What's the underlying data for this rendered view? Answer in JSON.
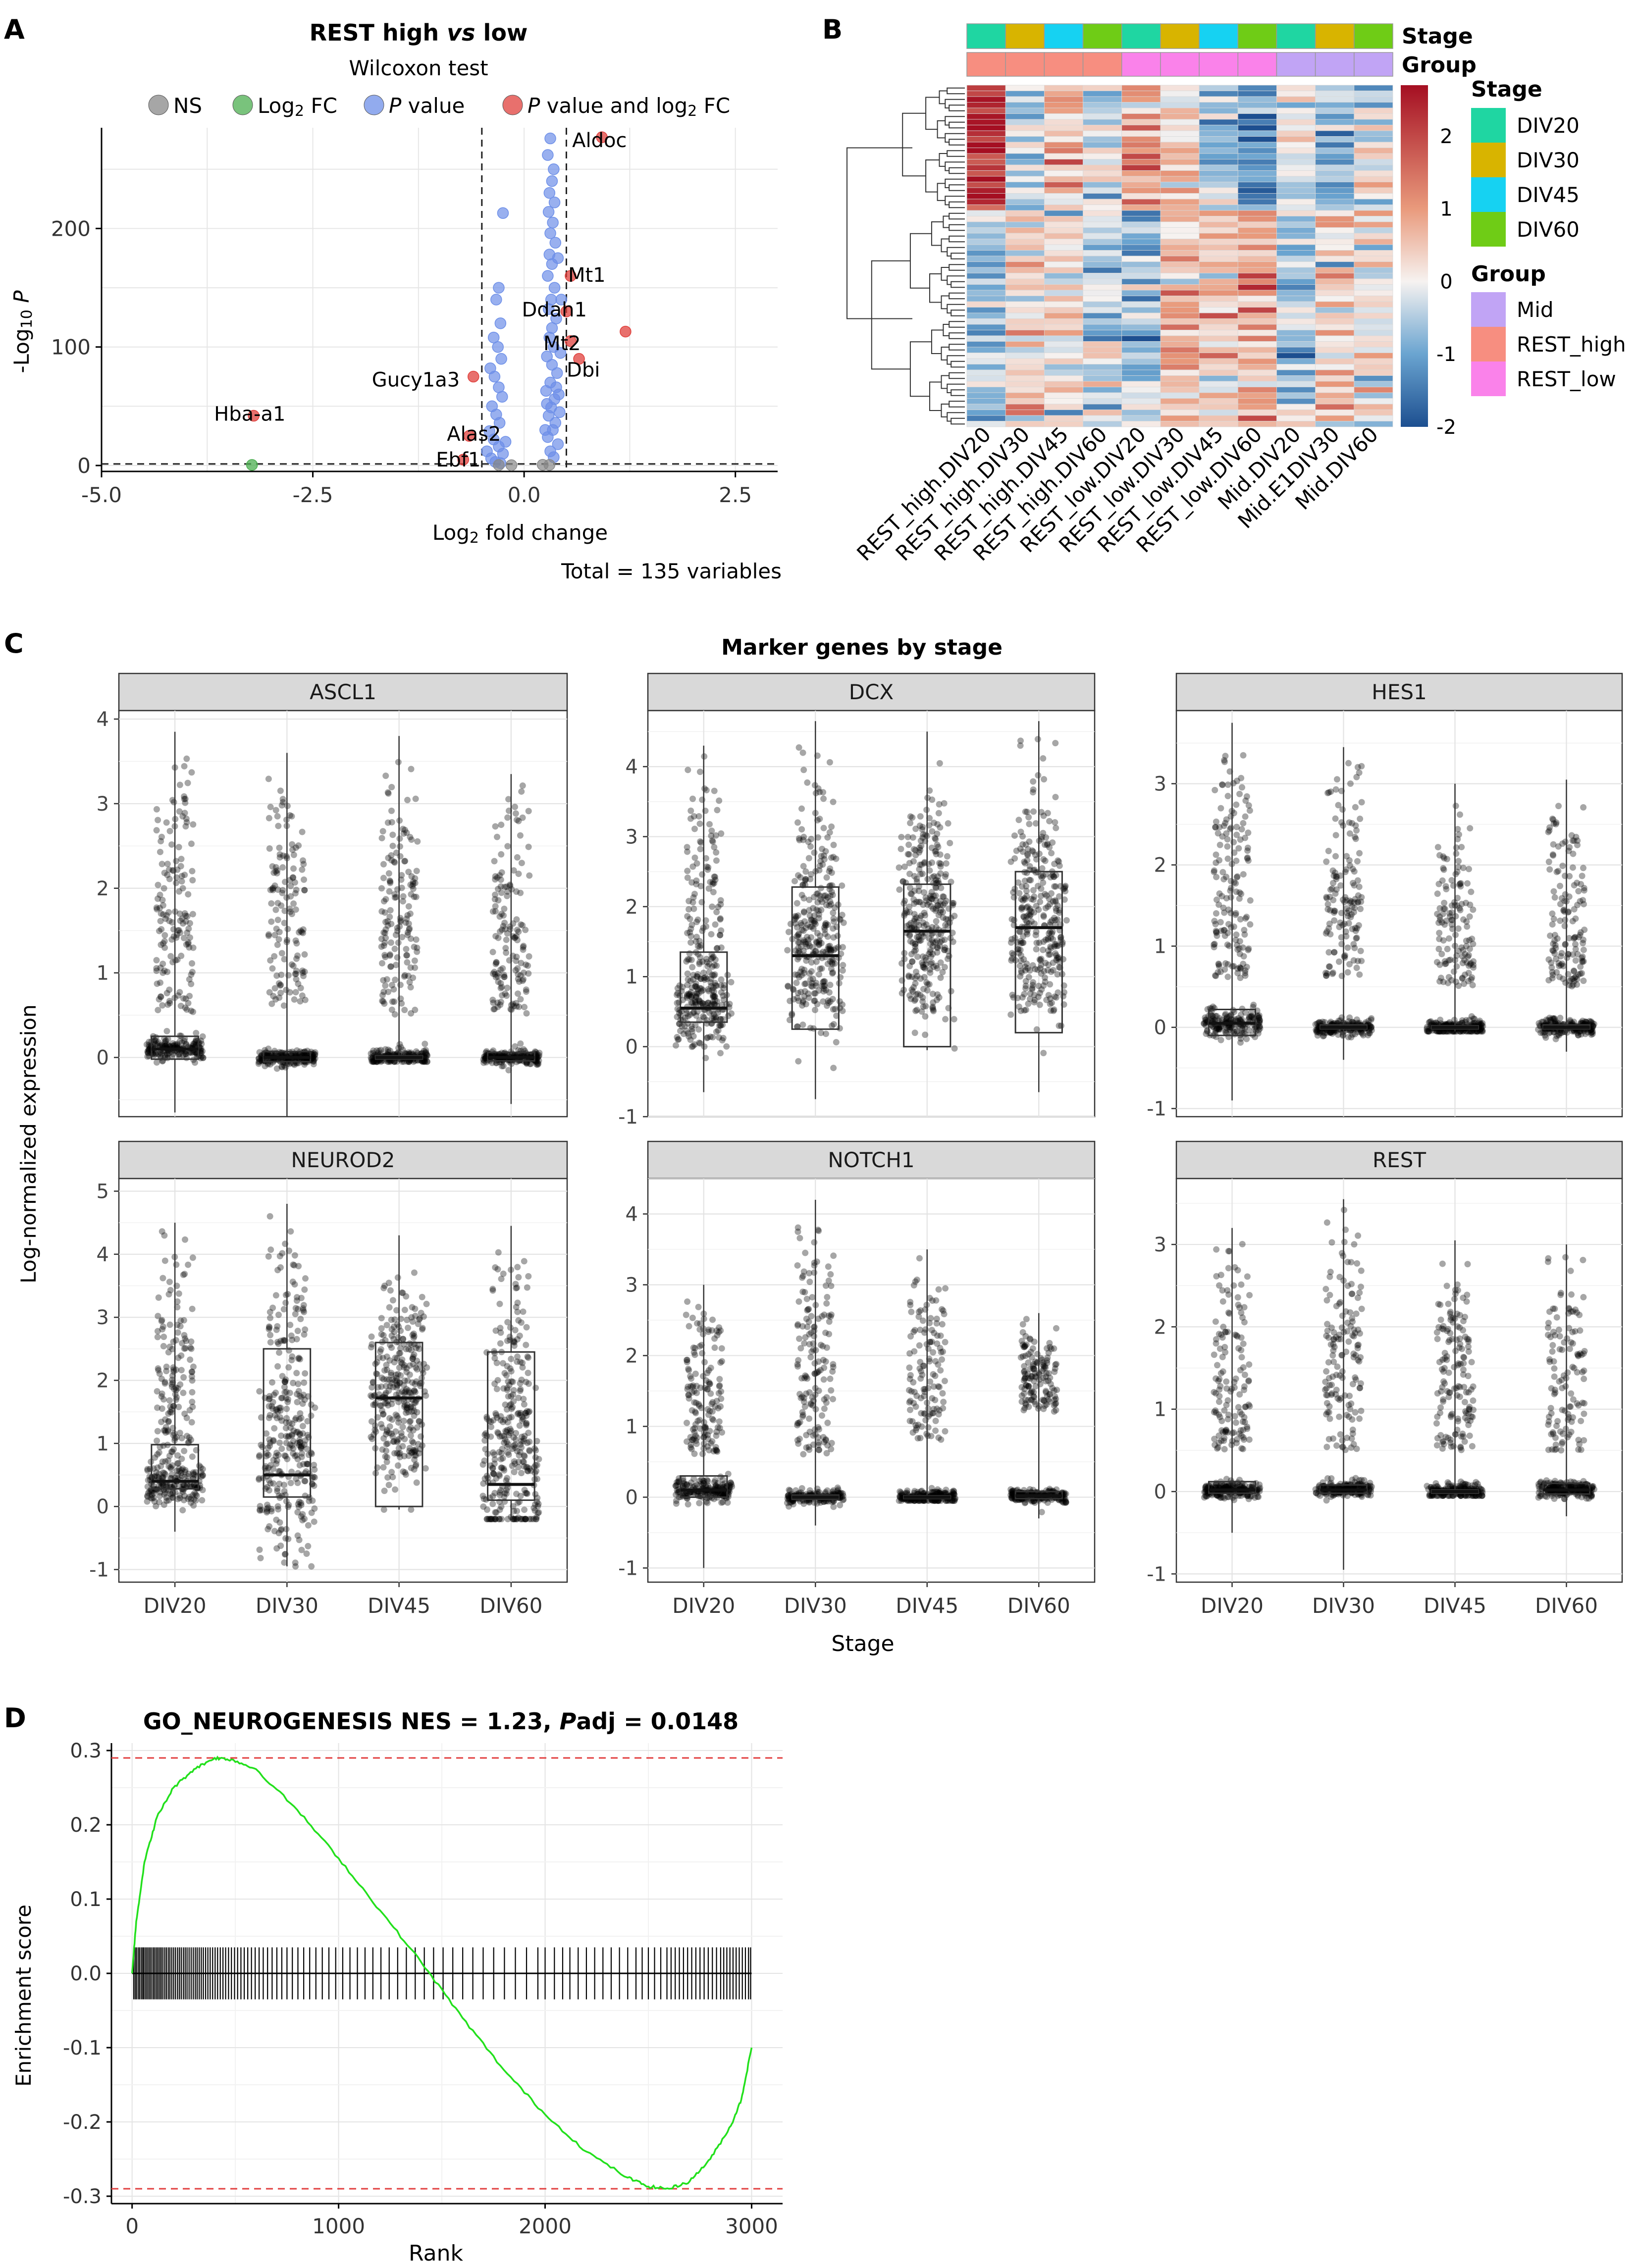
{
  "chart_data": [
    {
      "panel": "A",
      "type": "scatter",
      "title": "REST high vs low",
      "subtitle": "Wilcoxon test",
      "legend": [
        "NS",
        "Log2 FC",
        "P value",
        "P value and log2 FC"
      ],
      "colors": {
        "ns": "#888888",
        "fc": "#4caf50",
        "p": "#6d8fe8",
        "pfc": "#e0403c"
      },
      "xlabel": "Log2 fold change",
      "ylabel": "-Log10 P",
      "xticks": [
        "-5.0",
        "-2.5",
        "0.0",
        "2.5"
      ],
      "yticks": [
        "0",
        "100",
        "200"
      ],
      "xlim": [
        -5.0,
        3.0
      ],
      "ylim": [
        -5,
        285
      ],
      "x_cutoffs": [
        -0.5,
        0.5
      ],
      "y_cutoff": 1.3,
      "caption": "Total = 135 variables",
      "labeled_points": [
        {
          "label": "Aldoc",
          "x": 0.92,
          "y": 277,
          "group": "pfc"
        },
        {
          "label": "Mt1",
          "x": 0.55,
          "y": 160,
          "group": "pfc"
        },
        {
          "label": "Ddah1",
          "x": 0.5,
          "y": 130,
          "group": "pfc"
        },
        {
          "label": "Mt2",
          "x": 0.55,
          "y": 105,
          "group": "pfc"
        },
        {
          "label": "Dbi",
          "x": 0.65,
          "y": 90,
          "group": "pfc"
        },
        {
          "label": "",
          "x": 1.2,
          "y": 113,
          "group": "pfc"
        },
        {
          "label": "Gucy1a3",
          "x": -0.6,
          "y": 75,
          "group": "pfc"
        },
        {
          "label": "Hba-a1",
          "x": -3.2,
          "y": 42,
          "group": "pfc"
        },
        {
          "label": "Alas2",
          "x": -0.65,
          "y": 25,
          "group": "pfc"
        },
        {
          "label": "Ebf1",
          "x": -0.72,
          "y": 5,
          "group": "pfc"
        },
        {
          "label": "",
          "x": -3.22,
          "y": 0.5,
          "group": "fc"
        }
      ],
      "points": [
        {
          "x": 0.31,
          "y": 276,
          "g": "p"
        },
        {
          "x": 0.28,
          "y": 262,
          "g": "p"
        },
        {
          "x": 0.35,
          "y": 250,
          "g": "p"
        },
        {
          "x": 0.33,
          "y": 240,
          "g": "p"
        },
        {
          "x": 0.3,
          "y": 230,
          "g": "p"
        },
        {
          "x": 0.36,
          "y": 222,
          "g": "p"
        },
        {
          "x": 0.29,
          "y": 214,
          "g": "p"
        },
        {
          "x": 0.34,
          "y": 205,
          "g": "p"
        },
        {
          "x": 0.31,
          "y": 196,
          "g": "p"
        },
        {
          "x": 0.37,
          "y": 188,
          "g": "p"
        },
        {
          "x": 0.3,
          "y": 178,
          "g": "p"
        },
        {
          "x": 0.33,
          "y": 170,
          "g": "p"
        },
        {
          "x": 0.28,
          "y": 160,
          "g": "p"
        },
        {
          "x": 0.36,
          "y": 150,
          "g": "p"
        },
        {
          "x": 0.32,
          "y": 140,
          "g": "p"
        },
        {
          "x": 0.29,
          "y": 132,
          "g": "p"
        },
        {
          "x": 0.38,
          "y": 124,
          "g": "p"
        },
        {
          "x": 0.33,
          "y": 116,
          "g": "p"
        },
        {
          "x": 0.3,
          "y": 108,
          "g": "p"
        },
        {
          "x": 0.35,
          "y": 100,
          "g": "p"
        },
        {
          "x": 0.27,
          "y": 92,
          "g": "p"
        },
        {
          "x": 0.33,
          "y": 85,
          "g": "p"
        },
        {
          "x": 0.39,
          "y": 78,
          "g": "p"
        },
        {
          "x": 0.31,
          "y": 70,
          "g": "p"
        },
        {
          "x": 0.26,
          "y": 63,
          "g": "p"
        },
        {
          "x": 0.36,
          "y": 56,
          "g": "p"
        },
        {
          "x": 0.32,
          "y": 49,
          "g": "p"
        },
        {
          "x": 0.29,
          "y": 42,
          "g": "p"
        },
        {
          "x": 0.37,
          "y": 36,
          "g": "p"
        },
        {
          "x": 0.34,
          "y": 30,
          "g": "p"
        },
        {
          "x": 0.28,
          "y": 24,
          "g": "p"
        },
        {
          "x": 0.4,
          "y": 18,
          "g": "p"
        },
        {
          "x": 0.31,
          "y": 12,
          "g": "p"
        },
        {
          "x": 0.35,
          "y": 7,
          "g": "p"
        },
        {
          "x": 0.42,
          "y": 45,
          "g": "p"
        },
        {
          "x": 0.43,
          "y": 95,
          "g": "p"
        },
        {
          "x": 0.44,
          "y": 140,
          "g": "p"
        },
        {
          "x": 0.4,
          "y": 175,
          "g": "p"
        },
        {
          "x": 0.41,
          "y": 60,
          "g": "p"
        },
        {
          "x": 0.25,
          "y": 30,
          "g": "p"
        },
        {
          "x": 0.27,
          "y": 52,
          "g": "p"
        },
        {
          "x": 0.38,
          "y": 66,
          "g": "p"
        },
        {
          "x": -0.25,
          "y": 213,
          "g": "p"
        },
        {
          "x": -0.3,
          "y": 150,
          "g": "p"
        },
        {
          "x": -0.33,
          "y": 140,
          "g": "p"
        },
        {
          "x": -0.28,
          "y": 120,
          "g": "p"
        },
        {
          "x": -0.36,
          "y": 108,
          "g": "p"
        },
        {
          "x": -0.31,
          "y": 100,
          "g": "p"
        },
        {
          "x": -0.27,
          "y": 90,
          "g": "p"
        },
        {
          "x": -0.4,
          "y": 82,
          "g": "p"
        },
        {
          "x": -0.35,
          "y": 75,
          "g": "p"
        },
        {
          "x": -0.3,
          "y": 66,
          "g": "p"
        },
        {
          "x": -0.26,
          "y": 58,
          "g": "p"
        },
        {
          "x": -0.38,
          "y": 50,
          "g": "p"
        },
        {
          "x": -0.33,
          "y": 43,
          "g": "p"
        },
        {
          "x": -0.29,
          "y": 36,
          "g": "p"
        },
        {
          "x": -0.41,
          "y": 29,
          "g": "p"
        },
        {
          "x": -0.36,
          "y": 22,
          "g": "p"
        },
        {
          "x": -0.3,
          "y": 16,
          "g": "p"
        },
        {
          "x": -0.25,
          "y": 10,
          "g": "p"
        },
        {
          "x": -0.39,
          "y": 6,
          "g": "p"
        },
        {
          "x": -0.44,
          "y": 12,
          "g": "p"
        },
        {
          "x": -0.22,
          "y": 20,
          "g": "p"
        },
        {
          "x": -0.34,
          "y": 3,
          "g": "p"
        },
        {
          "x": -0.28,
          "y": 2,
          "g": "p"
        },
        {
          "x": 0.3,
          "y": 0.5,
          "g": "ns"
        },
        {
          "x": -0.3,
          "y": 0.4,
          "g": "ns"
        },
        {
          "x": 0.22,
          "y": 0.6,
          "g": "ns"
        },
        {
          "x": -0.15,
          "y": 0.3,
          "g": "ns"
        }
      ]
    },
    {
      "panel": "B",
      "type": "heatmap",
      "columns": [
        "REST_high.DIV20",
        "REST_high.DIV30",
        "REST_high.DIV45",
        "REST_high.DIV60",
        "REST_low.DIV20",
        "REST_low.DIV30",
        "REST_low.DIV45",
        "REST_low.DIV60",
        "Mid.DIV20",
        "Mid.E1DIV30",
        "Mid.DIV60"
      ],
      "column_stage": [
        "DIV20",
        "DIV30",
        "DIV45",
        "DIV60",
        "DIV20",
        "DIV30",
        "DIV45",
        "DIV60",
        "DIV20",
        "DIV30",
        "DIV60"
      ],
      "column_group": [
        "REST_high",
        "REST_high",
        "REST_high",
        "REST_high",
        "REST_low",
        "REST_low",
        "REST_low",
        "REST_low",
        "Mid",
        "Mid",
        "Mid"
      ],
      "annotation_labels": [
        "Stage",
        "Group"
      ],
      "stage_legend": {
        "title": "Stage",
        "items": [
          {
            "label": "DIV20",
            "color": "#1fd6a2"
          },
          {
            "label": "DIV30",
            "color": "#d8b400"
          },
          {
            "label": "DIV45",
            "color": "#16d2f2"
          },
          {
            "label": "DIV60",
            "color": "#6fcc16"
          }
        ]
      },
      "group_legend": {
        "title": "Group",
        "items": [
          {
            "label": "Mid",
            "color": "#c1a4f5"
          },
          {
            "label": "REST_high",
            "color": "#f78e80"
          },
          {
            "label": "REST_low",
            "color": "#fa82ea"
          }
        ]
      },
      "colorbar": {
        "ticks": [
          "2",
          "1",
          "0",
          "-1",
          "-2"
        ],
        "range": [
          -2,
          2.7
        ],
        "colors": [
          "#1d4f90",
          "#6aa4d0",
          "#f6f2f0",
          "#e99a7c",
          "#a50f22"
        ]
      },
      "rows": 60
    },
    {
      "panel": "C",
      "type": "box",
      "title": "Marker genes by stage",
      "xlabel": "Stage",
      "ylabel": "Log-normalized expression",
      "categories": [
        "DIV20",
        "DIV30",
        "DIV45",
        "DIV60"
      ],
      "facets": [
        {
          "gene": "ASCL1",
          "ylim": [
            -0.7,
            4.1
          ],
          "yticks": [
            0,
            1,
            2,
            3,
            4
          ],
          "boxes": [
            {
              "q1": -0.02,
              "med": 0.1,
              "q3": 0.25
            },
            {
              "q1": -0.05,
              "med": 0.0,
              "q3": 0.07
            },
            {
              "q1": -0.02,
              "med": 0.0,
              "q3": 0.02
            },
            {
              "q1": -0.04,
              "med": 0.0,
              "q3": 0.06
            }
          ],
          "maxes": [
            3.85,
            3.6,
            3.8,
            3.35
          ],
          "mins": [
            -0.65,
            -0.7,
            -0.05,
            -0.55
          ],
          "high_min": [
            0.5,
            0.6,
            0.5,
            0.5
          ]
        },
        {
          "gene": "DCX",
          "ylim": [
            -1,
            4.8
          ],
          "yticks": [
            -1,
            0,
            1,
            2,
            3,
            4
          ],
          "boxes": [
            {
              "q1": 0.35,
              "med": 0.55,
              "q3": 1.35
            },
            {
              "q1": 0.25,
              "med": 1.3,
              "q3": 2.28
            },
            {
              "q1": 0,
              "med": 1.65,
              "q3": 2.32
            },
            {
              "q1": 0.2,
              "med": 1.7,
              "q3": 2.5
            }
          ],
          "maxes": [
            4.3,
            4.65,
            4.5,
            4.65
          ],
          "mins": [
            -0.65,
            -0.75,
            -0.05,
            -0.65
          ],
          "high_min": [
            0.7,
            0.6,
            0.5,
            0.5
          ]
        },
        {
          "gene": "HES1",
          "ylim": [
            -1.1,
            3.9
          ],
          "yticks": [
            -1,
            0,
            1,
            2,
            3
          ],
          "boxes": [
            {
              "q1": -0.1,
              "med": 0.05,
              "q3": 0.22
            },
            {
              "q1": -0.02,
              "med": 0.0,
              "q3": 0.03
            },
            {
              "q1": -0.02,
              "med": 0.0,
              "q3": 0.02
            },
            {
              "q1": -0.02,
              "med": 0.0,
              "q3": 0.03
            }
          ],
          "maxes": [
            3.75,
            3.45,
            3.0,
            3.05
          ],
          "mins": [
            -0.9,
            -0.4,
            -0.05,
            -0.3
          ],
          "high_min": [
            0.6,
            0.6,
            0.5,
            0.5
          ]
        },
        {
          "gene": "NEUROD2",
          "ylim": [
            -1.2,
            5.2
          ],
          "yticks": [
            -1,
            0,
            1,
            2,
            3,
            4,
            5
          ],
          "boxes": [
            {
              "q1": 0.28,
              "med": 0.4,
              "q3": 0.98
            },
            {
              "q1": 0.15,
              "med": 0.5,
              "q3": 2.5
            },
            {
              "q1": 0,
              "med": 1.72,
              "q3": 2.6
            },
            {
              "q1": 0.1,
              "med": 0.35,
              "q3": 2.45
            }
          ],
          "maxes": [
            4.5,
            4.8,
            4.3,
            4.45
          ],
          "mins": [
            -0.4,
            -0.95,
            -0.05,
            -0.2
          ],
          "high_min": [
            0.8,
            0.8,
            0.6,
            0.6
          ]
        },
        {
          "gene": "NOTCH1",
          "ylim": [
            -1.2,
            4.5
          ],
          "yticks": [
            -1,
            0,
            1,
            2,
            3,
            4
          ],
          "boxes": [
            {
              "q1": 0.0,
              "med": 0.1,
              "q3": 0.3
            },
            {
              "q1": -0.03,
              "med": 0.0,
              "q3": 0.03
            },
            {
              "q1": -0.02,
              "med": 0.0,
              "q3": 0.02
            },
            {
              "q1": -0.02,
              "med": 0.02,
              "q3": 0.08
            }
          ],
          "maxes": [
            3.0,
            4.2,
            3.5,
            2.6
          ],
          "mins": [
            -1.0,
            -0.4,
            -0.05,
            -0.3
          ],
          "high_min": [
            0.6,
            0.6,
            0.8,
            1.2
          ]
        },
        {
          "gene": "REST",
          "ylim": [
            -1.1,
            3.8
          ],
          "yticks": [
            -1,
            0,
            1,
            2,
            3
          ],
          "boxes": [
            {
              "q1": -0.02,
              "med": 0.02,
              "q3": 0.12
            },
            {
              "q1": -0.02,
              "med": 0.02,
              "q3": 0.08
            },
            {
              "q1": -0.02,
              "med": 0.0,
              "q3": 0.02
            },
            {
              "q1": -0.03,
              "med": 0.02,
              "q3": 0.1
            }
          ],
          "maxes": [
            3.2,
            3.55,
            3.05,
            3.0
          ],
          "mins": [
            -0.5,
            -0.95,
            -0.05,
            -0.3
          ],
          "high_min": [
            0.5,
            0.5,
            0.5,
            0.5
          ]
        }
      ]
    },
    {
      "panel": "D",
      "type": "line",
      "title_prefix": "GO_NEUROGENESIS NES = 1.23, ",
      "title_p": "P",
      "title_suffix": "adj = 0.0148",
      "xlabel": "Rank",
      "ylabel": "Enrichment score",
      "xticks": [
        0,
        1000,
        2000,
        3000
      ],
      "yticks": [
        "0.3",
        "0.2",
        "0.1",
        "0.0",
        "-0.1",
        "-0.2",
        "-0.3"
      ],
      "xlim": [
        -100,
        3150
      ],
      "ylim": [
        -0.31,
        0.31
      ],
      "line_color": "#22e01c",
      "max_es": 0.29,
      "min_es": -0.29,
      "curve": [
        [
          0,
          0.0
        ],
        [
          20,
          0.07
        ],
        [
          60,
          0.15
        ],
        [
          120,
          0.21
        ],
        [
          200,
          0.25
        ],
        [
          300,
          0.275
        ],
        [
          400,
          0.29
        ],
        [
          480,
          0.288
        ],
        [
          600,
          0.275
        ],
        [
          800,
          0.22
        ],
        [
          1000,
          0.155
        ],
        [
          1200,
          0.085
        ],
        [
          1400,
          0.015
        ],
        [
          1600,
          -0.06
        ],
        [
          1800,
          -0.13
        ],
        [
          2000,
          -0.19
        ],
        [
          2200,
          -0.24
        ],
        [
          2400,
          -0.275
        ],
        [
          2500,
          -0.287
        ],
        [
          2600,
          -0.29
        ],
        [
          2700,
          -0.28
        ],
        [
          2800,
          -0.25
        ],
        [
          2900,
          -0.205
        ],
        [
          2950,
          -0.17
        ],
        [
          3000,
          -0.1
        ]
      ],
      "hits": [
        8,
        15,
        22,
        30,
        37,
        45,
        52,
        58,
        66,
        73,
        81,
        88,
        96,
        104,
        111,
        119,
        126,
        134,
        141,
        149,
        158,
        166,
        175,
        183,
        192,
        201,
        210,
        220,
        229,
        238,
        248,
        257,
        266,
        276,
        286,
        296,
        306,
        315,
        325,
        335,
        345,
        356,
        367,
        378,
        390,
        402,
        414,
        427,
        440,
        453,
        467,
        481,
        496,
        511,
        527,
        543,
        560,
        578,
        596,
        615,
        635,
        656,
        678,
        701,
        725,
        750,
        776,
        803,
        831,
        860,
        890,
        921,
        953,
        986,
        1020,
        1055,
        1091,
        1128,
        1166,
        1205,
        1245,
        1286,
        1328,
        1371,
        1415,
        1460,
        1506,
        1553,
        1601,
        1650,
        1700,
        1751,
        1803,
        1856,
        1910,
        1965,
        2000,
        2045,
        2085,
        2120,
        2160,
        2200,
        2240,
        2280,
        2320,
        2360,
        2400,
        2440,
        2470,
        2500,
        2530,
        2560,
        2590,
        2610,
        2630,
        2650,
        2670,
        2690,
        2710,
        2730,
        2750,
        2770,
        2790,
        2810,
        2830,
        2850,
        2865,
        2880,
        2895,
        2910,
        2925,
        2940,
        2955,
        2970,
        2985,
        2995
      ]
    }
  ]
}
